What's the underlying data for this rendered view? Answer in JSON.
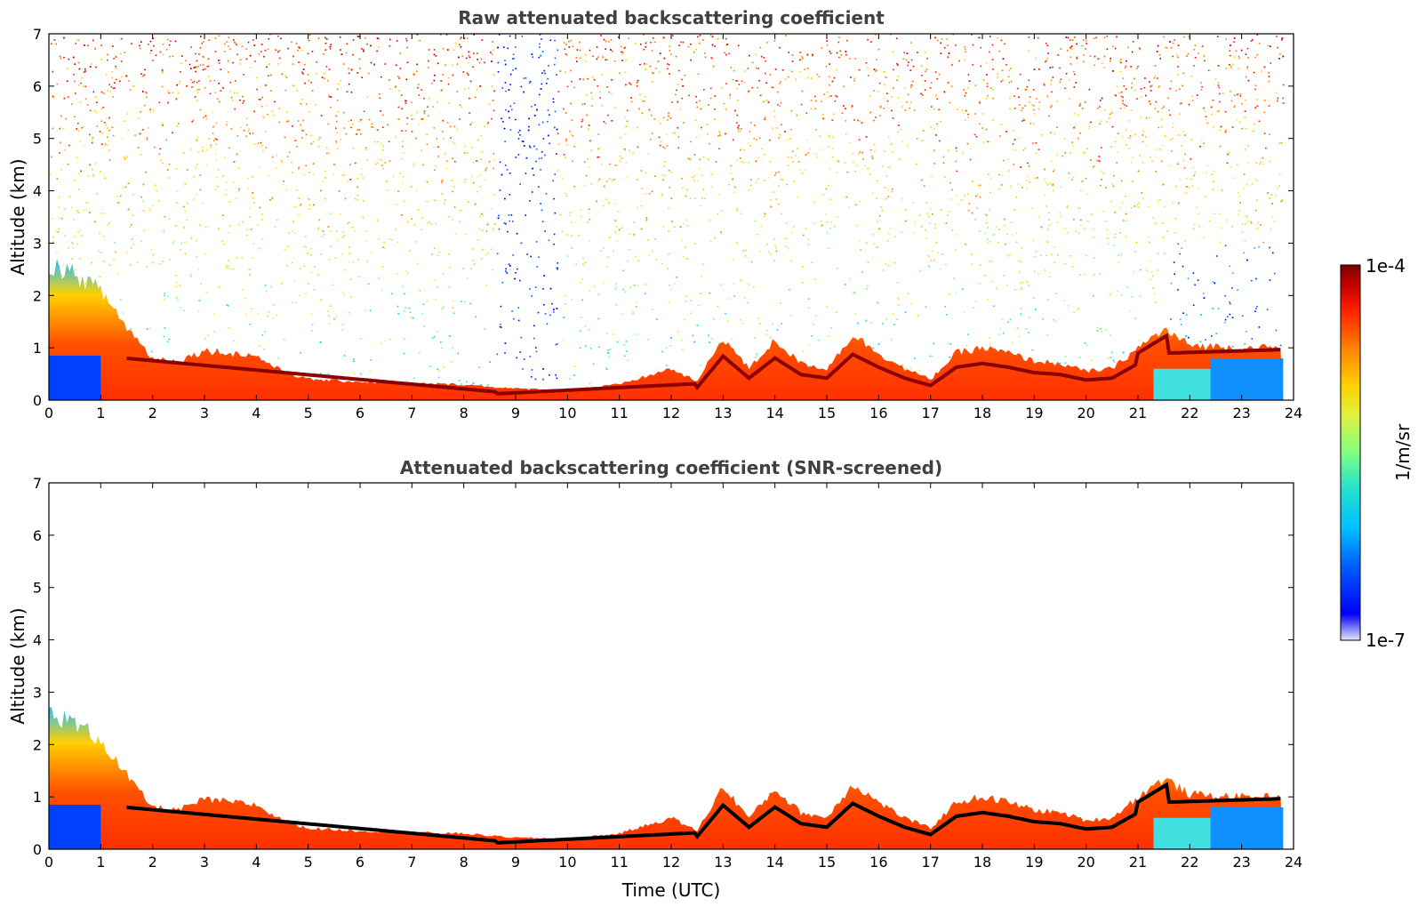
{
  "chart_data": [
    {
      "type": "heatmap",
      "title": "Raw attenuated backscattering coefficient",
      "xlabel": "",
      "ylabel": "Altitude (km)",
      "xlim": [
        0,
        24
      ],
      "ylim": [
        0,
        7
      ],
      "xticks": [
        0,
        1,
        2,
        3,
        4,
        5,
        6,
        7,
        8,
        9,
        10,
        11,
        12,
        13,
        14,
        15,
        16,
        17,
        18,
        19,
        20,
        21,
        22,
        23,
        24
      ],
      "yticks": [
        0,
        1,
        2,
        3,
        4,
        5,
        6,
        7
      ],
      "layer_top_km": [
        [
          0,
          2.6
        ],
        [
          0.5,
          2.4
        ],
        [
          1,
          2.1
        ],
        [
          1.5,
          1.4
        ],
        [
          2,
          0.8
        ],
        [
          2.5,
          0.75
        ],
        [
          3,
          0.95
        ],
        [
          3.5,
          0.9
        ],
        [
          4,
          0.85
        ],
        [
          4.5,
          0.55
        ],
        [
          5,
          0.4
        ],
        [
          6,
          0.35
        ],
        [
          7,
          0.32
        ],
        [
          8,
          0.3
        ],
        [
          8.6,
          0.25
        ],
        [
          9,
          0.22
        ],
        [
          10,
          0.2
        ],
        [
          11,
          0.3
        ],
        [
          11.5,
          0.45
        ],
        [
          12,
          0.6
        ],
        [
          12.5,
          0.35
        ],
        [
          13,
          1.2
        ],
        [
          13.5,
          0.6
        ],
        [
          14,
          1.15
        ],
        [
          14.5,
          0.7
        ],
        [
          15,
          0.6
        ],
        [
          15.5,
          1.25
        ],
        [
          16,
          0.9
        ],
        [
          16.5,
          0.6
        ],
        [
          17,
          0.4
        ],
        [
          17.5,
          0.9
        ],
        [
          18,
          1.0
        ],
        [
          18.5,
          0.9
        ],
        [
          19,
          0.75
        ],
        [
          19.5,
          0.7
        ],
        [
          20,
          0.55
        ],
        [
          20.5,
          0.6
        ],
        [
          21,
          1.0
        ],
        [
          21.5,
          1.35
        ],
        [
          22,
          1.05
        ],
        [
          23,
          1.0
        ],
        [
          23.8,
          1.0
        ]
      ],
      "colorbar": {
        "min_label": "1e-7",
        "max_label": "1e-4",
        "label": "1/m/sr",
        "scale": "log"
      }
    },
    {
      "type": "heatmap",
      "title": "Attenuated backscattering coefficient (SNR-screened)",
      "xlabel": "Time (UTC)",
      "ylabel": "Altitude (km)",
      "xlim": [
        0,
        24
      ],
      "ylim": [
        0,
        7
      ],
      "xticks": [
        0,
        1,
        2,
        3,
        4,
        5,
        6,
        7,
        8,
        9,
        10,
        11,
        12,
        13,
        14,
        15,
        16,
        17,
        18,
        19,
        20,
        21,
        22,
        23,
        24
      ],
      "yticks": [
        0,
        1,
        2,
        3,
        4,
        5,
        6,
        7
      ]
    }
  ],
  "colors": {
    "colormap": [
      "#e6e6f5",
      "#0000ff",
      "#0060ff",
      "#00c0ff",
      "#20e0d0",
      "#80ff80",
      "#e0f040",
      "#ffd000",
      "#ff8000",
      "#ff2000",
      "#c00000",
      "#7a0000"
    ],
    "axis": "#000000",
    "title": "#404040"
  }
}
